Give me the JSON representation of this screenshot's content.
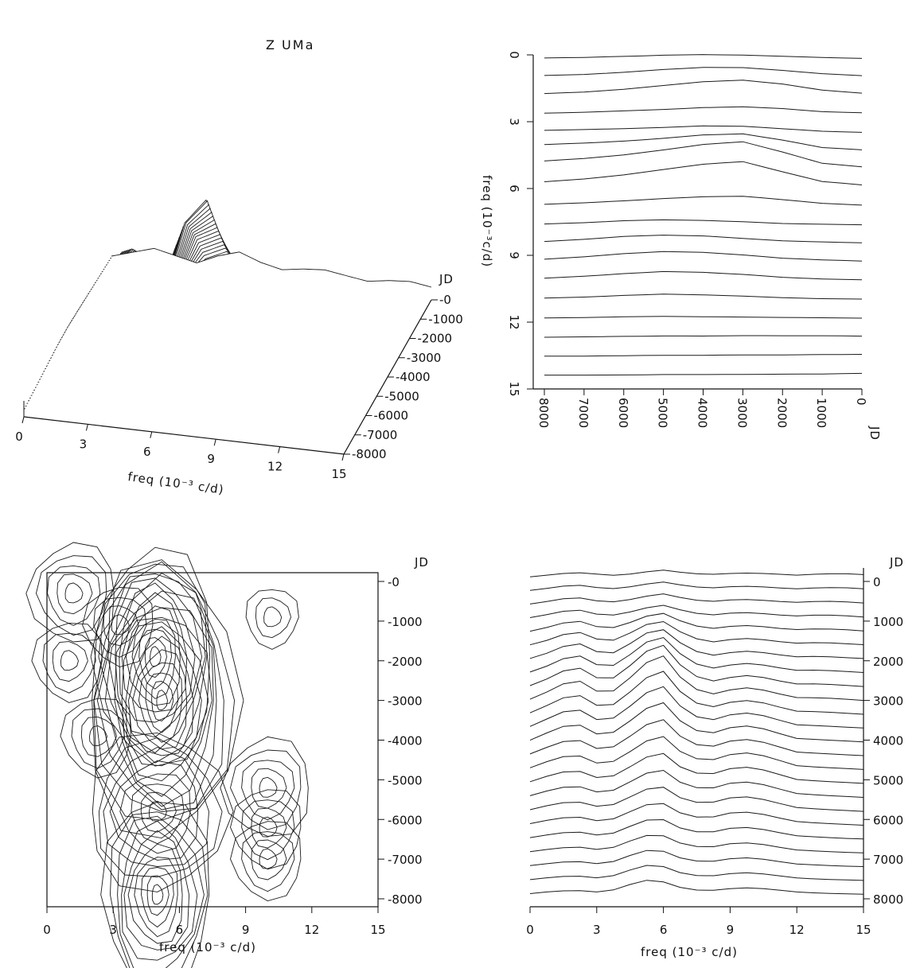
{
  "chart_data": [
    {
      "type": "surface",
      "title": "Z UMa",
      "xlabel": "freq (10⁻³ c/d)",
      "ylabel": "JD",
      "x_ticks": [
        "0",
        "3",
        "6",
        "9",
        "12",
        "15"
      ],
      "y_ticks": [
        "0",
        "1000",
        "2000",
        "3000",
        "4000",
        "5000",
        "6000",
        "7000",
        "8000"
      ],
      "xlim": [
        0,
        15
      ],
      "ylim": [
        0,
        8000
      ],
      "series": [
        {
          "jd": 0,
          "values": [
            0.4,
            0.8,
            1.2,
            0.9,
            0.6,
            1.2,
            1.6,
            1.1,
            0.8,
            1.0,
            1.1,
            0.9,
            0.7,
            0.9,
            1.0,
            0.8
          ]
        },
        {
          "jd": 1000,
          "values": [
            0.5,
            1.2,
            2.0,
            1.1,
            0.9,
            2.0,
            2.6,
            1.6,
            0.9,
            1.3,
            1.4,
            1.0,
            0.8,
            1.0,
            0.9,
            0.6
          ]
        },
        {
          "jd": 2000,
          "values": [
            0.6,
            1.8,
            3.6,
            1.8,
            1.5,
            4.8,
            5.5,
            2.6,
            1.0,
            1.6,
            1.9,
            1.3,
            0.9,
            1.0,
            0.8,
            0.6
          ]
        },
        {
          "jd": 3000,
          "values": [
            0.7,
            2.4,
            4.6,
            2.2,
            2.2,
            7.0,
            8.6,
            3.5,
            1.4,
            2.3,
            2.8,
            1.8,
            1.0,
            1.0,
            0.8,
            0.5
          ]
        },
        {
          "jd": 4000,
          "values": [
            0.8,
            2.6,
            4.2,
            2.0,
            2.4,
            6.4,
            7.8,
            3.3,
            1.8,
            3.0,
            3.4,
            2.2,
            1.1,
            0.9,
            0.7,
            0.5
          ]
        },
        {
          "jd": 5000,
          "values": [
            0.8,
            2.2,
            3.2,
            1.6,
            2.0,
            5.2,
            6.2,
            2.8,
            2.0,
            3.2,
            3.6,
            2.4,
            1.2,
            0.9,
            0.7,
            0.5
          ]
        },
        {
          "jd": 6000,
          "values": [
            0.7,
            1.6,
            2.2,
            1.3,
            1.7,
            4.2,
            4.6,
            2.2,
            1.8,
            2.8,
            3.0,
            2.0,
            1.1,
            0.8,
            0.6,
            0.4
          ]
        },
        {
          "jd": 7000,
          "values": [
            0.6,
            1.1,
            1.5,
            1.0,
            1.5,
            3.5,
            3.4,
            1.7,
            1.3,
            2.0,
            2.2,
            1.5,
            0.9,
            0.7,
            0.5,
            0.4
          ]
        },
        {
          "jd": 8000,
          "values": [
            0.5,
            0.9,
            1.1,
            0.8,
            1.3,
            3.0,
            2.6,
            1.3,
            1.0,
            1.4,
            1.6,
            1.2,
            0.8,
            0.6,
            0.5,
            0.4
          ]
        }
      ]
    },
    {
      "type": "stacked-line",
      "xlabel": "freq (10⁻³c/d)",
      "ylabel": "JD",
      "x_ticks": [
        "0",
        "3",
        "6",
        "9",
        "12",
        "15"
      ],
      "y_ticks": [
        "8000",
        "7000",
        "6000",
        "5000",
        "4000",
        "3000",
        "2000",
        "1000",
        "0"
      ],
      "xlim": [
        0,
        15
      ],
      "ylim": [
        0,
        8000
      ]
    },
    {
      "type": "contour",
      "xlabel": "freq (10⁻³ c/d)",
      "ylabel": "JD",
      "x_ticks": [
        "0",
        "3",
        "6",
        "9",
        "12",
        "15"
      ],
      "y_ticks": [
        "0",
        "1000",
        "2000",
        "3000",
        "4000",
        "5000",
        "6000",
        "7000",
        "8000"
      ],
      "xlim": [
        0,
        15
      ],
      "ylim": [
        0,
        8000
      ]
    },
    {
      "type": "stacked-line",
      "xlabel": "freq (10⁻³ c/d)",
      "ylabel": "JD",
      "x_ticks": [
        "0",
        "3",
        "6",
        "9",
        "12",
        "15"
      ],
      "y_ticks": [
        "0",
        "1000",
        "2000",
        "3000",
        "4000",
        "5000",
        "6000",
        "7000",
        "8000"
      ],
      "xlim": [
        0,
        15
      ],
      "ylim": [
        0,
        8000
      ]
    }
  ]
}
